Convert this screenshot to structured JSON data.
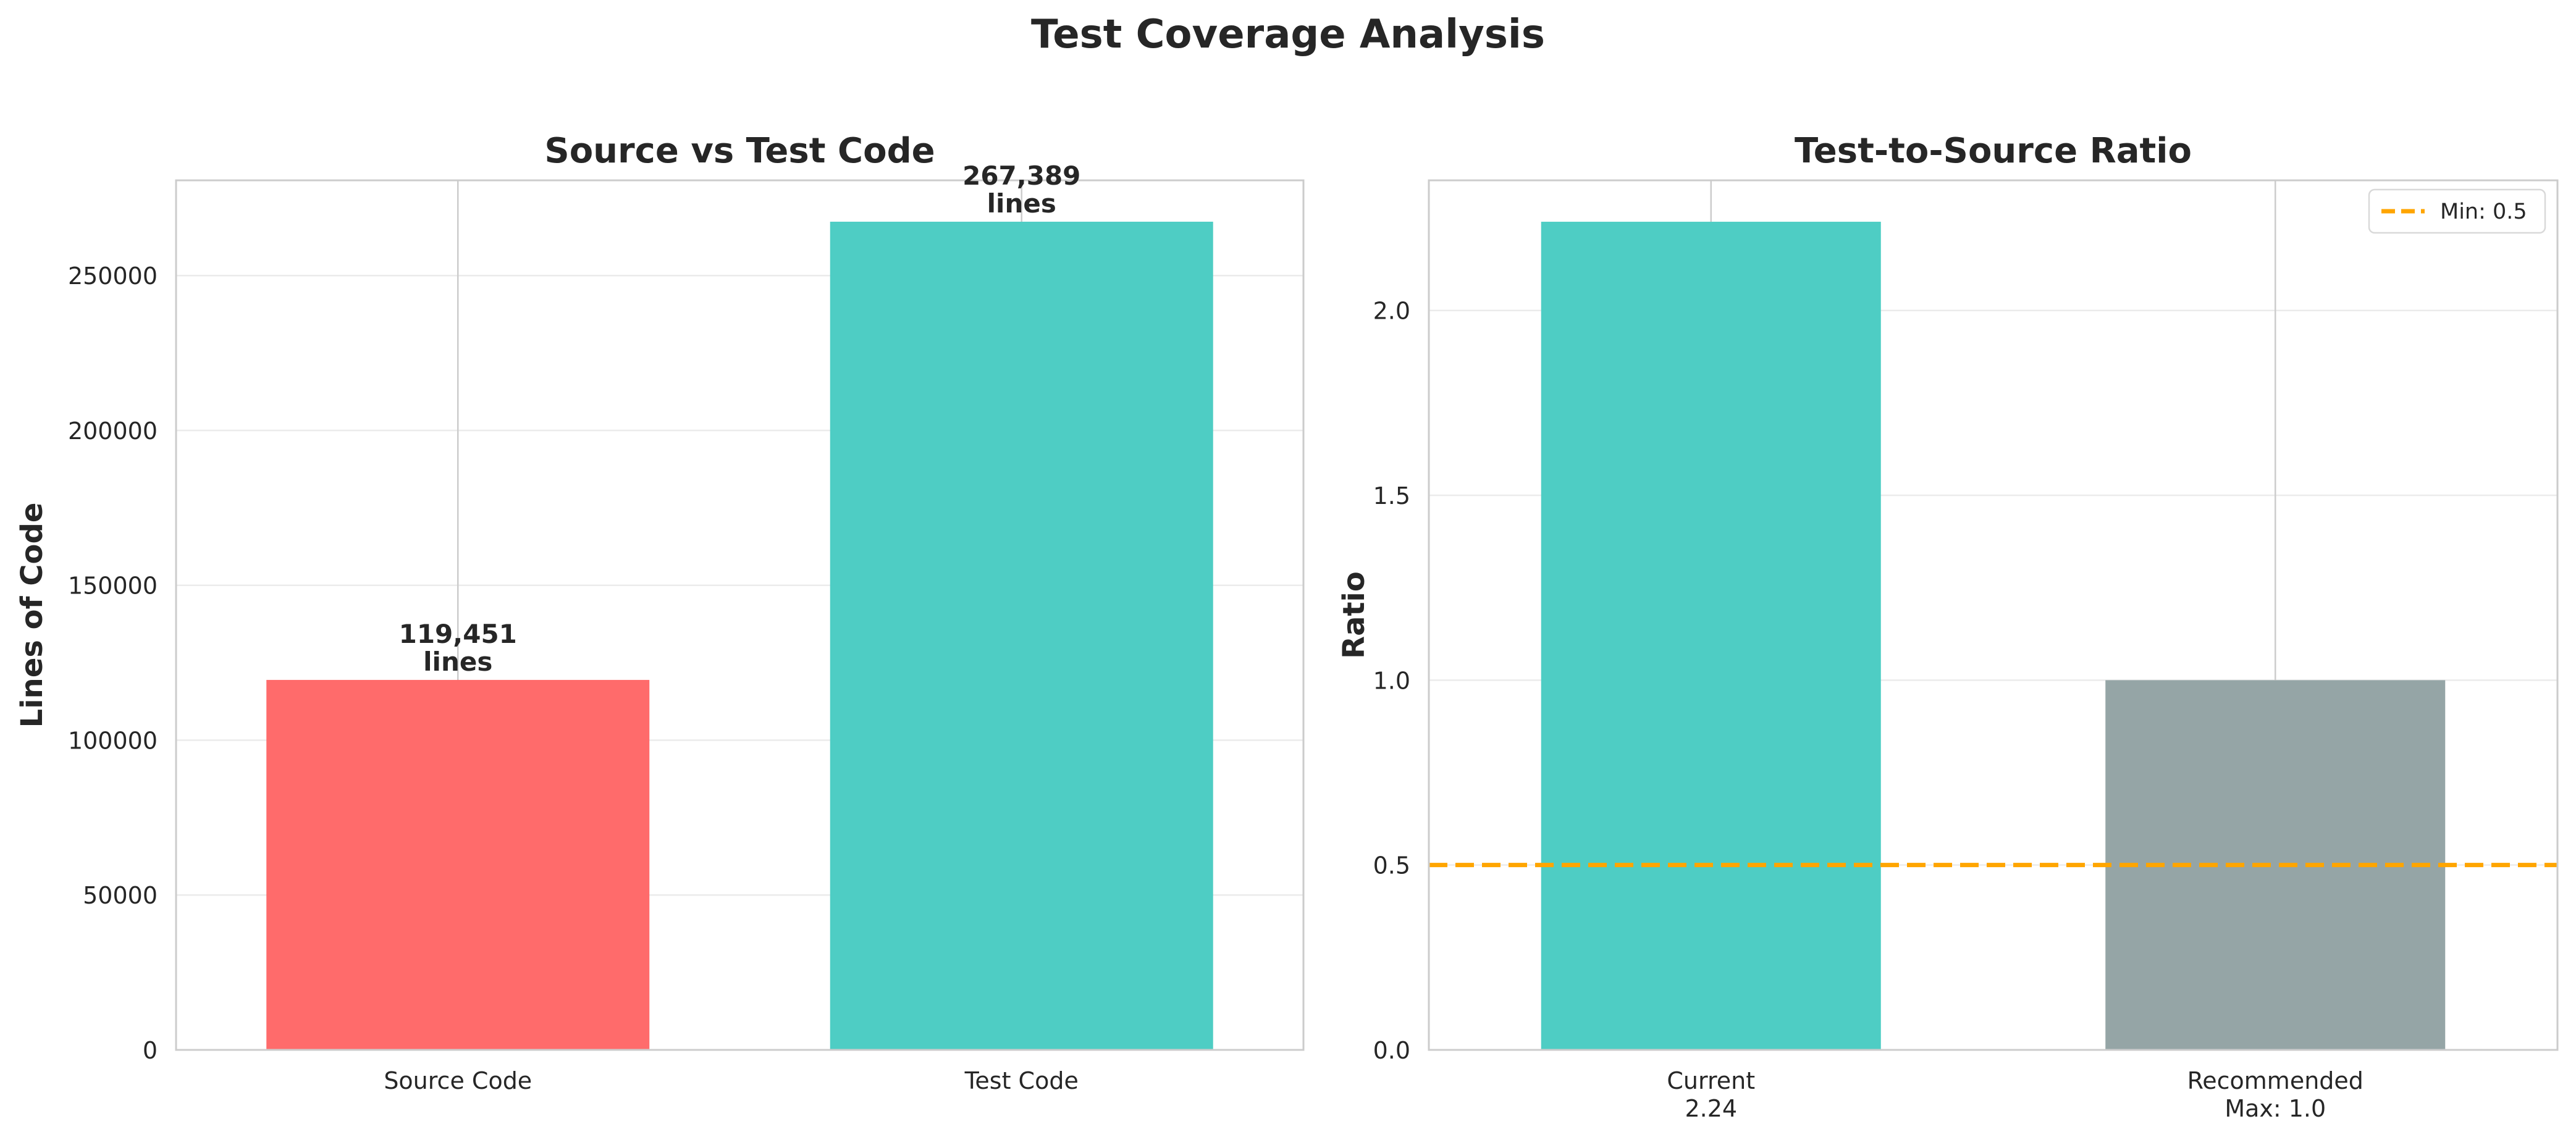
{
  "figure": {
    "title": "Test Coverage Analysis"
  },
  "colors": {
    "source": "#FF6B6B",
    "test": "#4ECDC4",
    "recommended": "#95A5A6",
    "threshold": "#FFA500",
    "grid": "#EBEBEB",
    "frame": "#CCCCCC",
    "text": "#262626"
  },
  "chart_data": [
    {
      "type": "bar",
      "title": "Source vs Test Code",
      "xlabel": "",
      "ylabel": "Lines of Code",
      "categories": [
        "Source Code",
        "Test Code"
      ],
      "values": [
        119451,
        267389
      ],
      "data_labels": [
        "119,451\nlines",
        "267,389\nlines"
      ],
      "bar_colors": [
        "#FF6B6B",
        "#4ECDC4"
      ],
      "ylim": [
        0,
        280745
      ],
      "yticks": [
        0,
        50000,
        100000,
        150000,
        200000,
        250000
      ],
      "ytick_labels": [
        "0",
        "50000",
        "100000",
        "150000",
        "200000",
        "250000"
      ],
      "grid": true
    },
    {
      "type": "bar",
      "title": "Test-to-Source Ratio",
      "xlabel": "",
      "ylabel": "Ratio",
      "categories": [
        "Current\n2.24",
        "Recommended\nMax: 1.0"
      ],
      "values": [
        2.24,
        1.0
      ],
      "bar_colors": [
        "#4ECDC4",
        "#95A5A6"
      ],
      "ylim": [
        0,
        2.352
      ],
      "yticks": [
        0.0,
        0.5,
        1.0,
        1.5,
        2.0
      ],
      "ytick_labels": [
        "0.0",
        "0.5",
        "1.0",
        "1.5",
        "2.0"
      ],
      "reference_line": {
        "value": 0.5,
        "label": "Min: 0.5",
        "style": "dashed"
      },
      "legend": {
        "position": "top-right",
        "entries": [
          "Min: 0.5"
        ]
      },
      "grid": true
    }
  ]
}
